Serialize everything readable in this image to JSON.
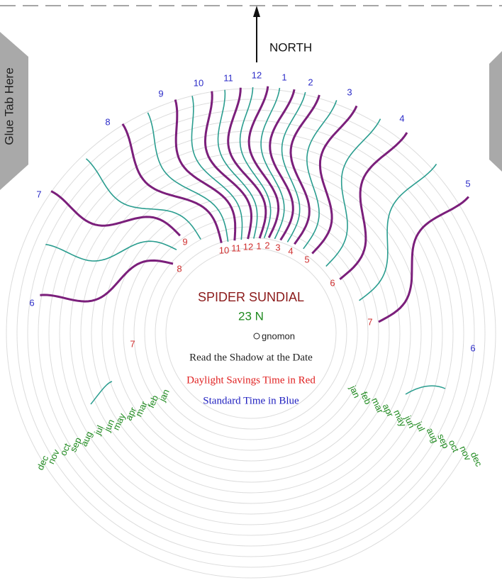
{
  "header": {
    "direction": "NORTH",
    "glue_tab": "Glue Tab Here"
  },
  "title": "SPIDER SUNDIAL",
  "latitude": "23 N",
  "gnomon": "gnomon",
  "instructions": [
    "Read the Shadow at the Date",
    "Daylight Savings Time in Red",
    "Standard Time in Blue"
  ],
  "standard_hours": [
    "6",
    "7",
    "8",
    "9",
    "10",
    "11",
    "12",
    "1",
    "2",
    "3",
    "4",
    "5",
    "6"
  ],
  "daylight_hours": [
    "7",
    "8",
    "9",
    "10",
    "11",
    "12",
    "1",
    "2",
    "3",
    "4",
    "5",
    "6",
    "7"
  ],
  "months_left": [
    "jan",
    "feb",
    "mar",
    "apr",
    "may",
    "jun",
    "jul",
    "aug",
    "sep",
    "oct",
    "nov",
    "dec"
  ],
  "months_right": [
    "jan",
    "feb",
    "mar",
    "apr",
    "may",
    "jun",
    "jul",
    "aug",
    "sep",
    "oct",
    "nov",
    "dec"
  ]
}
